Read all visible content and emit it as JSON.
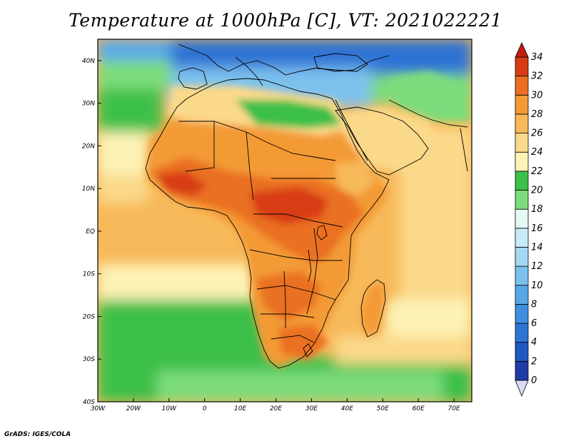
{
  "title": "Temperature at 1000hPa [C], VT: 2021022221",
  "credit": "GrADS: IGES/COLA",
  "map": {
    "lat_range": [
      -40,
      45
    ],
    "lon_range": [
      -30,
      75
    ],
    "lat_ticks": [
      {
        "value": 40,
        "label": "40N"
      },
      {
        "value": 30,
        "label": "30N"
      },
      {
        "value": 20,
        "label": "20N"
      },
      {
        "value": 10,
        "label": "10N"
      },
      {
        "value": 0,
        "label": "EQ"
      },
      {
        "value": -10,
        "label": "10S"
      },
      {
        "value": -20,
        "label": "20S"
      },
      {
        "value": -30,
        "label": "30S"
      },
      {
        "value": -40,
        "label": "40S"
      }
    ],
    "lon_ticks": [
      {
        "value": -30,
        "label": "30W"
      },
      {
        "value": -20,
        "label": "20W"
      },
      {
        "value": -10,
        "label": "10W"
      },
      {
        "value": 0,
        "label": "0"
      },
      {
        "value": 10,
        "label": "10E"
      },
      {
        "value": 20,
        "label": "20E"
      },
      {
        "value": 30,
        "label": "30E"
      },
      {
        "value": 40,
        "label": "40E"
      },
      {
        "value": 50,
        "label": "50E"
      },
      {
        "value": 60,
        "label": "60E"
      },
      {
        "value": 70,
        "label": "70E"
      }
    ],
    "colorbar": {
      "levels": [
        0,
        2,
        4,
        6,
        8,
        10,
        12,
        14,
        16,
        18,
        20,
        22,
        24,
        26,
        28,
        30,
        32,
        34
      ],
      "colors": [
        "#1b1c86",
        "#1f3ba6",
        "#2258c3",
        "#2f73d4",
        "#3e8fe0",
        "#58a8e8",
        "#7cc1ee",
        "#a3d8f3",
        "#c6ecf7",
        "#e6f9f4",
        "#7cdc7c",
        "#3cc04a",
        "#fdf3b6",
        "#fbd98a",
        "#f7b95a",
        "#f39a36",
        "#ea6f22",
        "#d83c15",
        "#c01f10"
      ]
    }
  }
}
